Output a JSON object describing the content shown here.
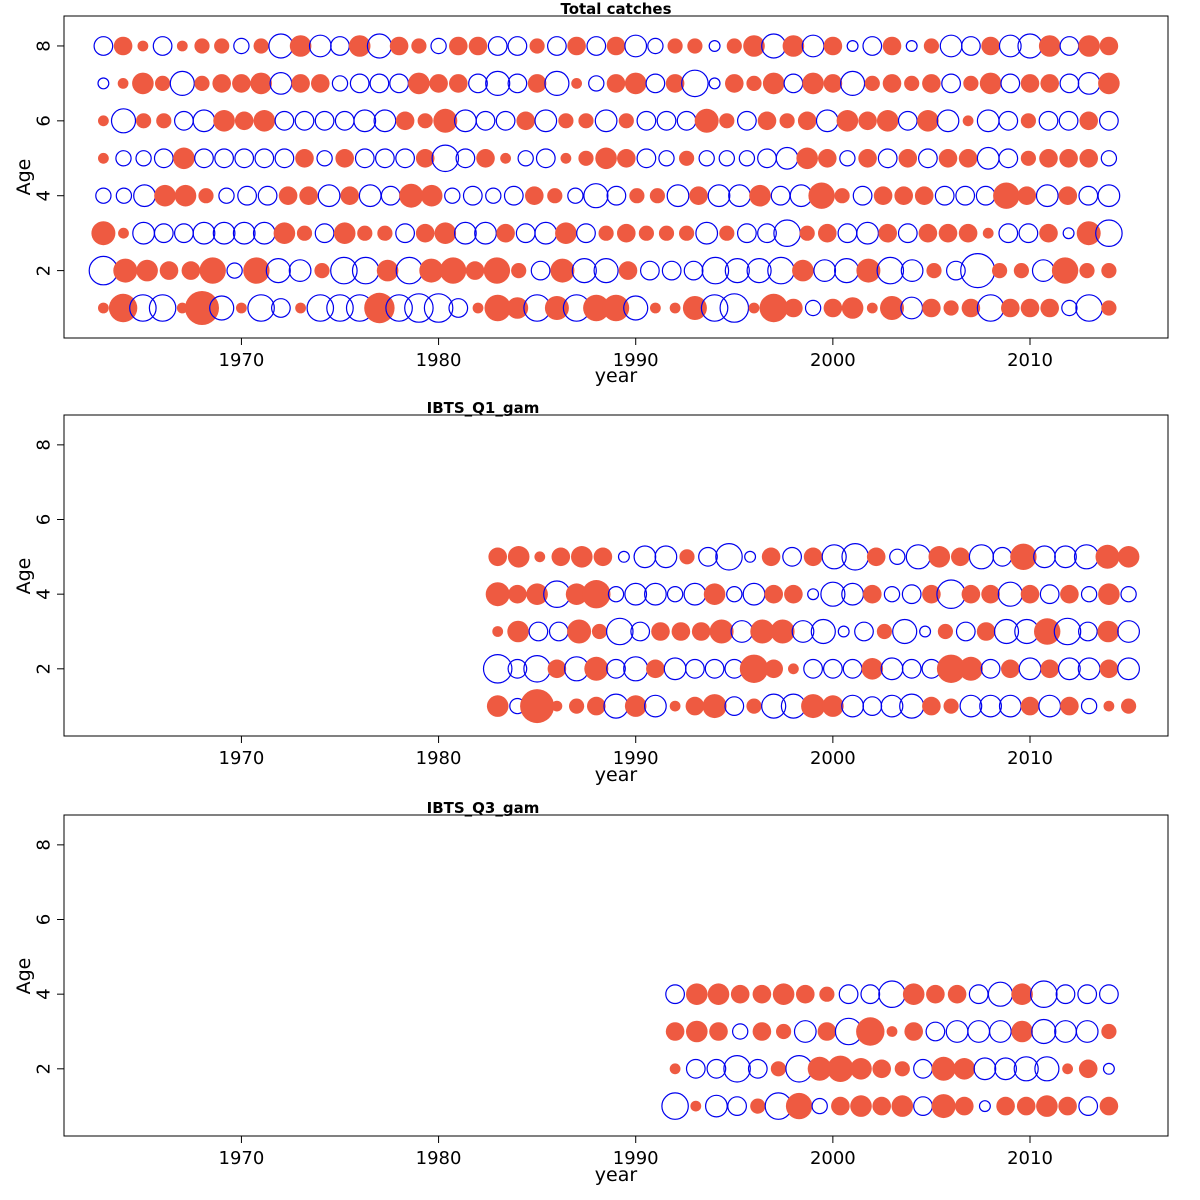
{
  "colors": {
    "positive": "#ee5a41",
    "negative": "#0000ee"
  },
  "chart_data": [
    {
      "type": "bubble",
      "title": "Total catches",
      "xlabel": "year",
      "ylabel": "Age",
      "xlim": [
        1961,
        2017
      ],
      "ylim": [
        0.2,
        8.8
      ],
      "xticks": [
        1970,
        1980,
        1990,
        2000,
        2010
      ],
      "yticks": [
        2,
        4,
        6,
        8
      ],
      "ages": [
        1,
        2,
        3,
        4,
        5,
        6,
        7,
        8
      ],
      "years": [
        1963,
        2014
      ],
      "residuals": [
        [
          0.1,
          0.7,
          -0.6,
          -0.6,
          0.1,
          1.0,
          -0.5,
          0.1,
          -0.6,
          -0.3,
          0.1,
          -0.6,
          -0.6,
          -0.6,
          0.8,
          -0.6,
          -0.7,
          -0.7,
          -0.3,
          0.1,
          0.6,
          0.4,
          -0.6,
          0.5,
          -0.6,
          0.6,
          0.6,
          -0.5,
          0.1,
          0.1,
          0.5,
          -0.6,
          -0.7,
          0.1,
          0.7,
          0.3,
          -0.2,
          0.3,
          0.4,
          0.1,
          0.5,
          -0.4,
          0.3,
          0.2,
          0.3,
          -0.6,
          0.3,
          0.3,
          0.3,
          -0.2,
          -0.6,
          0.2
        ],
        [
          -0.7,
          0.5,
          0.4,
          0.3,
          0.3,
          0.6,
          -0.2,
          0.6,
          -0.5,
          -0.4,
          0.2,
          -0.6,
          -0.6,
          0.4,
          -0.6,
          0.5,
          0.6,
          0.3,
          0.6,
          0.2,
          -0.3,
          0.5,
          -0.5,
          -0.5,
          0.3,
          -0.3,
          -0.3,
          -0.3,
          -0.6,
          -0.5,
          -0.5,
          -0.6,
          0.4,
          -0.4,
          -0.5,
          0.5,
          -0.6,
          -0.4,
          0.2,
          -0.3,
          -1.0,
          0.2,
          0.2,
          -0.4,
          0.6,
          0.2,
          0.2
        ],
        [
          0.5,
          0.1,
          -0.4,
          -0.3,
          -0.3,
          -0.4,
          -0.4,
          -0.4,
          -0.4,
          0.4,
          0.2,
          -0.3,
          0.4,
          0.2,
          0.2,
          -0.3,
          0.3,
          0.4,
          -0.4,
          -0.4,
          0.3,
          -0.3,
          -0.4,
          0.4,
          -0.3,
          0.2,
          0.3,
          0.2,
          0.2,
          0.2,
          -0.4,
          0.2,
          -0.3,
          -0.3,
          -0.6,
          0.2,
          0.3,
          -0.3,
          -0.4,
          0.3,
          -0.3,
          0.3,
          0.3,
          0.3,
          0.1,
          -0.3,
          -0.3,
          0.3,
          -0.1,
          0.5,
          -0.6
        ],
        [
          -0.2,
          -0.2,
          -0.4,
          0.4,
          0.4,
          0.2,
          -0.2,
          -0.3,
          -0.3,
          0.3,
          0.3,
          -0.4,
          0.3,
          -0.4,
          -0.3,
          0.5,
          0.4,
          -0.2,
          -0.3,
          -0.2,
          -0.3,
          0.3,
          0.2,
          -0.2,
          -0.5,
          -0.3,
          0.2,
          0.2,
          -0.4,
          0.3,
          -0.4,
          -0.4,
          0.4,
          -0.3,
          -0.4,
          0.6,
          0.2,
          -0.3,
          0.3,
          0.3,
          0.3,
          -0.3,
          -0.3,
          -0.3,
          0.6,
          0.3,
          -0.4,
          0.3,
          -0.3,
          -0.4
        ],
        [
          0.1,
          -0.2,
          -0.2,
          -0.3,
          0.4,
          -0.3,
          -0.3,
          -0.3,
          -0.3,
          -0.3,
          0.3,
          -0.2,
          0.3,
          -0.3,
          -0.3,
          -0.3,
          0.3,
          -0.6,
          -0.3,
          0.3,
          0.1,
          -0.2,
          -0.3,
          0.1,
          0.2,
          0.4,
          0.3,
          -0.3,
          -0.2,
          0.2,
          -0.2,
          -0.2,
          -0.2,
          -0.3,
          -0.4,
          0.4,
          0.3,
          -0.2,
          0.3,
          -0.3,
          0.3,
          -0.3,
          0.3,
          0.3,
          -0.4,
          -0.3,
          0.2,
          0.3,
          0.3,
          0.3,
          -0.2
        ],
        [
          0.1,
          -0.5,
          0.2,
          0.2,
          -0.3,
          -0.4,
          0.4,
          0.3,
          0.4,
          -0.3,
          -0.3,
          -0.3,
          -0.3,
          -0.4,
          -0.4,
          0.3,
          0.2,
          0.5,
          -0.4,
          -0.3,
          -0.3,
          0.3,
          -0.4,
          0.2,
          0.2,
          -0.4,
          0.2,
          -0.3,
          -0.3,
          -0.3,
          0.5,
          0.2,
          -0.3,
          0.3,
          0.2,
          0.3,
          -0.4,
          0.4,
          0.3,
          0.4,
          -0.3,
          0.4,
          -0.4,
          0.1,
          -0.4,
          -0.3,
          0.2,
          -0.3,
          -0.3,
          0.3,
          -0.3
        ],
        [
          -0.1,
          0.1,
          0.4,
          0.2,
          -0.5,
          0.2,
          0.3,
          0.3,
          0.4,
          -0.4,
          0.3,
          0.3,
          -0.2,
          -0.3,
          -0.3,
          -0.3,
          0.4,
          0.3,
          0.3,
          -0.3,
          -0.5,
          -0.3,
          0.3,
          -0.5,
          0.1,
          -0.2,
          0.3,
          0.4,
          -0.3,
          0.3,
          -0.6,
          -0.1,
          0.3,
          0.2,
          0.4,
          -0.3,
          0.4,
          0.3,
          -0.5,
          0.2,
          0.3,
          0.2,
          0.3,
          -0.3,
          0.2,
          0.4,
          -0.3,
          0.3,
          0.3,
          -0.3,
          -0.4,
          0.4
        ],
        [
          -0.3,
          0.3,
          0.1,
          -0.3,
          0.1,
          0.2,
          0.2,
          -0.2,
          0.2,
          -0.5,
          0.4,
          -0.4,
          -0.3,
          0.4,
          -0.5,
          0.3,
          0.2,
          -0.2,
          0.3,
          0.3,
          -0.3,
          -0.3,
          0.2,
          -0.3,
          0.3,
          -0.3,
          0.3,
          -0.4,
          -0.2,
          0.2,
          0.2,
          -0.1,
          0.2,
          0.4,
          -0.5,
          0.4,
          -0.4,
          0.3,
          -0.1,
          -0.3,
          0.3,
          -0.1,
          0.2,
          -0.4,
          -0.3,
          0.3,
          -0.4,
          -0.5,
          0.4,
          -0.3,
          0.4,
          0.3
        ]
      ]
    },
    {
      "type": "bubble",
      "title": "IBTS_Q1_gam",
      "xlabel": "year",
      "ylabel": "Age",
      "xlim": [
        1961,
        2017
      ],
      "ylim": [
        0.2,
        8.8
      ],
      "xticks": [
        1970,
        1980,
        1990,
        2000,
        2010
      ],
      "yticks": [
        2,
        4,
        6,
        8
      ],
      "ages": [
        1,
        2,
        3,
        4,
        5
      ],
      "years": [
        1983,
        2015
      ],
      "residuals": [
        [
          0.4,
          -0.2,
          1.0,
          0.1,
          0.2,
          0.3,
          -0.5,
          0.4,
          -0.4,
          0.1,
          0.3,
          0.5,
          -0.3,
          0.2,
          -0.5,
          -0.5,
          0.5,
          0.4,
          -0.4,
          -0.3,
          -0.4,
          -0.5,
          0.3,
          0.2,
          -0.4,
          -0.4,
          -0.4,
          0.3,
          -0.4,
          0.3,
          -0.2,
          0.1,
          0.2
        ],
        [
          -0.7,
          -0.3,
          -0.6,
          0.3,
          -0.5,
          0.5,
          -0.3,
          -0.5,
          0.3,
          -0.4,
          -0.3,
          -0.3,
          -0.3,
          0.7,
          0.3,
          0.1,
          -0.3,
          -0.3,
          -0.3,
          0.4,
          -0.4,
          -0.3,
          -0.3,
          0.7,
          0.5,
          -0.3,
          0.3,
          -0.4,
          0.3,
          -0.4,
          -0.4,
          0.3,
          -0.4
        ],
        [
          0.1,
          0.4,
          -0.3,
          -0.3,
          0.5,
          0.2,
          -0.6,
          -0.3,
          0.3,
          0.3,
          0.3,
          0.5,
          -0.4,
          0.5,
          0.5,
          -0.4,
          -0.5,
          -0.1,
          -0.3,
          0.2,
          -0.5,
          -0.1,
          0.2,
          -0.3,
          0.3,
          -0.5,
          -0.5,
          0.6,
          -0.6,
          -0.3,
          0.4,
          -0.4
        ],
        [
          0.5,
          0.3,
          0.4,
          -0.6,
          0.4,
          0.7,
          -0.2,
          -0.4,
          -0.4,
          -0.2,
          -0.4,
          0.4,
          -0.2,
          -0.4,
          0.3,
          0.3,
          -0.1,
          -0.5,
          -0.4,
          0.3,
          -0.2,
          -0.3,
          0.3,
          -0.7,
          0.3,
          0.3,
          -0.5,
          0.3,
          -0.3,
          0.3,
          -0.2,
          0.4,
          -0.2
        ],
        [
          0.3,
          0.4,
          0.1,
          0.3,
          0.4,
          0.3,
          -0.1,
          -0.4,
          -0.4,
          0.2,
          -0.3,
          -0.6,
          -0.1,
          0.3,
          -0.3,
          0.3,
          -0.5,
          -0.6,
          0.3,
          -0.2,
          -0.5,
          0.4,
          0.3,
          -0.5,
          -0.3,
          0.6,
          -0.4,
          -0.4,
          -0.5,
          0.5,
          0.4
        ]
      ]
    },
    {
      "type": "bubble",
      "title": "IBTS_Q3_gam",
      "xlabel": "year",
      "ylabel": "Age",
      "xlim": [
        1961,
        2017
      ],
      "ylim": [
        0.2,
        8.8
      ],
      "xticks": [
        1970,
        1980,
        1990,
        2000,
        2010
      ],
      "yticks": [
        2,
        4,
        6,
        8
      ],
      "ages": [
        1,
        2,
        3,
        4
      ],
      "years": [
        1992,
        2014
      ],
      "residuals": [
        [
          -0.6,
          0.1,
          -0.4,
          -0.3,
          0.2,
          -0.6,
          0.6,
          -0.2,
          0.3,
          0.4,
          0.3,
          0.4,
          -0.3,
          0.5,
          0.3,
          -0.1,
          0.3,
          0.3,
          0.4,
          0.3,
          -0.3,
          0.3
        ],
        [
          0.1,
          -0.3,
          -0.3,
          -0.6,
          -0.3,
          0.2,
          -0.6,
          0.5,
          0.6,
          0.4,
          0.3,
          0.2,
          -0.3,
          0.5,
          0.4,
          -0.4,
          -0.4,
          -0.5,
          -0.5,
          0.1,
          0.3,
          -0.1
        ],
        [
          0.3,
          0.4,
          0.3,
          -0.2,
          0.3,
          0.2,
          -0.4,
          0.3,
          -0.6,
          0.7,
          0.1,
          0.3,
          -0.3,
          -0.4,
          -0.4,
          -0.4,
          0.4,
          -0.5,
          -0.4,
          -0.4,
          0.2
        ],
        [
          -0.3,
          0.4,
          0.4,
          0.3,
          0.3,
          0.4,
          0.3,
          0.2,
          -0.3,
          -0.3,
          -0.6,
          0.4,
          0.3,
          0.3,
          -0.3,
          -0.5,
          0.4,
          -0.6,
          -0.3,
          -0.3,
          -0.3
        ]
      ]
    }
  ]
}
